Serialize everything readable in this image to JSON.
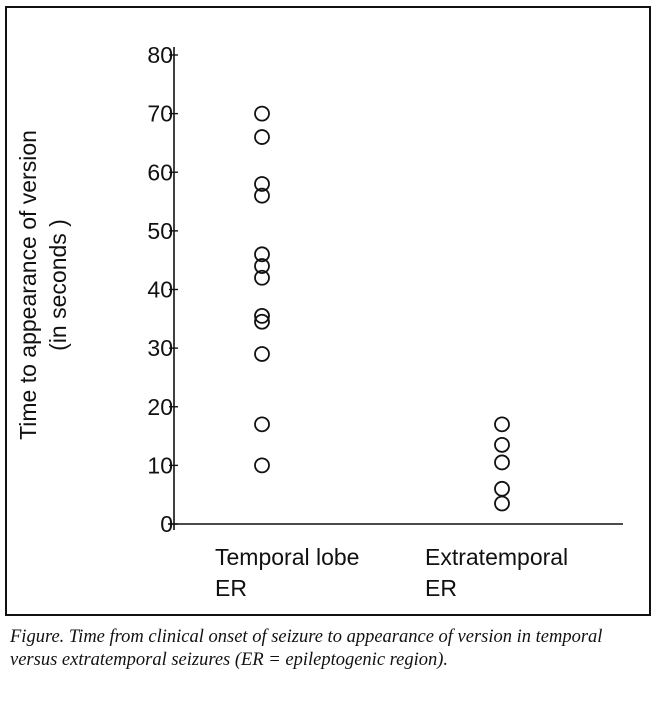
{
  "chart_data": {
    "type": "scatter",
    "title": "",
    "ylabel_lines": [
      "Time to appearance of version",
      "(in seconds )"
    ],
    "ylim": [
      0,
      80
    ],
    "yticks": [
      0,
      10,
      20,
      30,
      40,
      50,
      60,
      70,
      80
    ],
    "categories": [
      {
        "lines": [
          "Temporal lobe",
          "ER"
        ]
      },
      {
        "lines": [
          "Extratemporal",
          "ER"
        ]
      }
    ],
    "series": [
      {
        "category_index": 0,
        "values": [
          70,
          66,
          58,
          56,
          46,
          44,
          42,
          35.5,
          34.5,
          29,
          17,
          10
        ]
      },
      {
        "category_index": 1,
        "values": [
          17,
          13.5,
          10.5,
          6,
          3.5
        ]
      }
    ],
    "marker": "open-circle",
    "grid": false,
    "legend": "none"
  },
  "caption": "Figure. Time from clinical onset of seizure to appearance of version in temporal versus extratemporal seizures (ER = epileptogenic region)."
}
